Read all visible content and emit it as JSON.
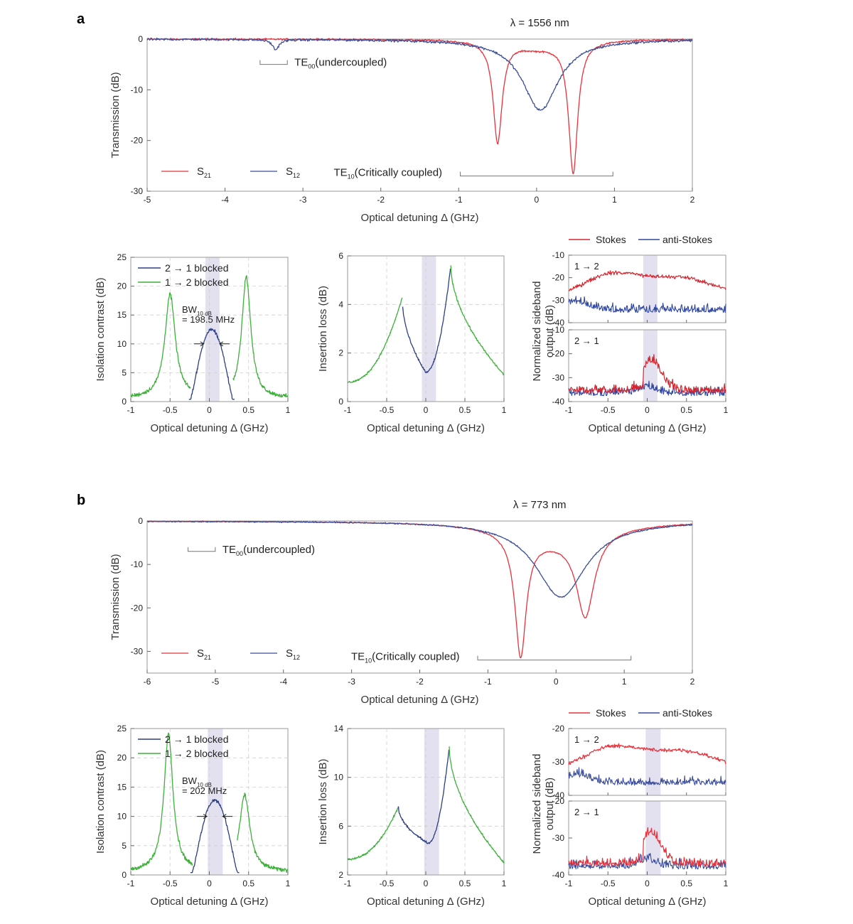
{
  "figure": {
    "panel_a_label": "a",
    "panel_b_label": "b"
  },
  "chart_data": [
    {
      "id": "a_trans",
      "type": "line",
      "title": "λ = 1556 nm",
      "xlabel": "Optical detuning Δ (GHz)",
      "ylabel": "Transmission (dB)",
      "xlim": [
        -5,
        2
      ],
      "ylim": [
        -30,
        0
      ],
      "xticks": [
        "-5",
        "-4",
        "-3",
        "-2",
        "-1",
        "0",
        "1",
        "2"
      ],
      "yticks": [
        "0",
        "-10",
        "-20",
        "-30"
      ],
      "series": [
        {
          "name": "S21",
          "sub": "21",
          "color": "#e8323c",
          "dips": [
            {
              "x0": -0.5,
              "gamma": 0.07,
              "depth": 20
            },
            {
              "x0": 0.47,
              "gamma": 0.07,
              "depth": 26
            },
            {
              "x0": 0.0,
              "gamma": 0.35,
              "depth": 1.5
            }
          ],
          "noise": 0.15
        },
        {
          "name": "S12",
          "sub": "12",
          "color": "#3a4d9a",
          "dips": [
            {
              "x0": 0.05,
              "gamma": 0.28,
              "depth": 14
            },
            {
              "x0": -3.35,
              "gamma": 0.05,
              "depth": 2
            }
          ],
          "noise": 0.2
        }
      ],
      "legend": [
        {
          "base": "S",
          "sub": "21"
        },
        {
          "base": "S",
          "sub": "12"
        }
      ],
      "annotations": {
        "te00": {
          "base": "TE",
          "sub": "00",
          "rest": "(undercoupled)",
          "range": [
            -3.55,
            -3.2
          ],
          "y": -5
        },
        "te10": {
          "base": "TE",
          "sub": "10",
          "rest": "(Critically coupled)",
          "range": [
            -0.98,
            0.98
          ],
          "y": -27
        }
      }
    },
    {
      "id": "a_iso",
      "type": "line",
      "xlabel": "Optical detuning Δ (GHz)",
      "ylabel": "Isolation contrast (dB)",
      "xlim": [
        -1,
        1
      ],
      "ylim": [
        0,
        25
      ],
      "xticks": [
        "-1",
        "-0.5",
        "0",
        "0.5",
        "1"
      ],
      "yticks": [
        "0",
        "5",
        "10",
        "15",
        "20",
        "25"
      ],
      "band": [
        -0.05,
        0.13
      ],
      "series": [
        {
          "name": "2 → 1 blocked",
          "color": "#2d3f84"
        },
        {
          "name": "1 → 2 blocked",
          "color": "#3db13a"
        }
      ],
      "green_peaks": [
        {
          "x0": -0.5,
          "gamma": 0.08,
          "amp": 18
        },
        {
          "x0": 0.47,
          "gamma": 0.07,
          "amp": 21
        }
      ],
      "blue_peak": {
        "x0": 0.03,
        "width": 0.28,
        "amp": 12.5
      },
      "bw_label": {
        "base": "BW",
        "sub": "10 dB",
        "value": "= 198.5 MHz"
      }
    },
    {
      "id": "a_ins",
      "type": "line",
      "xlabel": "Optical detuning Δ (GHz)",
      "ylabel": "Insertion loss (dB)",
      "xlim": [
        -1,
        1
      ],
      "ylim": [
        0,
        6
      ],
      "xticks": [
        "-1",
        "-0.5",
        "0",
        "0.5",
        "1"
      ],
      "yticks": [
        "0",
        "2",
        "4",
        "6"
      ],
      "band": [
        -0.05,
        0.13
      ],
      "peaks": [
        {
          "x": -0.3,
          "y": 4.3
        },
        {
          "x": 0.32,
          "y": 5.6
        }
      ],
      "min": {
        "x": 0.0,
        "y": 1.2
      },
      "edges": [
        0.8,
        1.1
      ]
    },
    {
      "id": "a_side",
      "type": "line",
      "xlabel": "Optical detuning Δ (GHz)",
      "ylabel": "Normalized sideband output (dB)",
      "xlim": [
        -1,
        1
      ],
      "ylim": [
        -40,
        -10
      ],
      "xticks": [
        "-1",
        "-0.5",
        "0",
        "0.5",
        "1"
      ],
      "yticks": [
        "-10",
        "-20",
        "-30",
        "-40"
      ],
      "band": [
        -0.05,
        0.13
      ],
      "legend": [
        {
          "name": "Stokes",
          "color": "#d7262e"
        },
        {
          "name": "anti-Stokes",
          "color": "#2e46a0"
        }
      ],
      "sub_labels": [
        "1 → 2",
        "2 → 1"
      ]
    },
    {
      "id": "b_trans",
      "type": "line",
      "title": "λ = 773 nm",
      "xlabel": "Optical detuning Δ (GHz)",
      "ylabel": "Transmission (dB)",
      "xlim": [
        -6,
        2
      ],
      "ylim": [
        -35,
        0
      ],
      "xticks": [
        "-6",
        "-5",
        "-4",
        "-3",
        "-2",
        "-1",
        "0",
        "1",
        "2"
      ],
      "yticks": [
        "0",
        "-10",
        "-20",
        "-30"
      ],
      "series": [
        {
          "name": "S21",
          "sub": "21",
          "color": "#e8323c",
          "dips": [
            {
              "x0": -0.52,
              "gamma": 0.1,
              "depth": 28
            },
            {
              "x0": 0.43,
              "gamma": 0.16,
              "depth": 19
            },
            {
              "x0": -0.05,
              "gamma": 0.8,
              "depth": 4
            }
          ],
          "noise": 0.1
        },
        {
          "name": "S12",
          "sub": "12",
          "color": "#3a4d9a",
          "dips": [
            {
              "x0": 0.07,
              "gamma": 0.45,
              "depth": 17.5
            }
          ],
          "noise": 0.12
        }
      ],
      "legend": [
        {
          "base": "S",
          "sub": "21"
        },
        {
          "base": "S",
          "sub": "12"
        }
      ],
      "annotations": {
        "te00": {
          "base": "TE",
          "sub": "00",
          "rest": "(undercoupled)",
          "range": [
            -5.4,
            -5.0
          ],
          "y": -7
        },
        "te10": {
          "base": "TE",
          "sub": "10",
          "rest": "(Critically coupled)",
          "range": [
            -1.15,
            1.1
          ],
          "y": -32
        }
      }
    },
    {
      "id": "b_iso",
      "type": "line",
      "xlabel": "Optical detuning Δ (GHz)",
      "ylabel": "Isolation contrast (dB)",
      "xlim": [
        -1,
        1
      ],
      "ylim": [
        0,
        25
      ],
      "xticks": [
        "-1",
        "-0.5",
        "0",
        "0.5",
        "1"
      ],
      "yticks": [
        "0",
        "5",
        "10",
        "15",
        "20",
        "25"
      ],
      "band": [
        -0.02,
        0.17
      ],
      "series": [
        {
          "name": "2 → 1 blocked",
          "color": "#2d3f84"
        },
        {
          "name": "1 → 2 blocked",
          "color": "#3db13a"
        }
      ],
      "green_peaks": [
        {
          "x0": -0.52,
          "gamma": 0.07,
          "amp": 23.5
        },
        {
          "x0": 0.45,
          "gamma": 0.08,
          "amp": 13
        }
      ],
      "blue_peak": {
        "x0": 0.07,
        "width": 0.3,
        "amp": 12.8
      },
      "bw_label": {
        "base": "BW",
        "sub": "10 dB",
        "value": "= 202 MHz"
      }
    },
    {
      "id": "b_ins",
      "type": "line",
      "xlabel": "Optical detuning Δ (GHz)",
      "ylabel": "Insertion loss (dB)",
      "xlim": [
        -1,
        1
      ],
      "ylim": [
        2,
        14
      ],
      "xticks": [
        "-1",
        "-0.5",
        "0",
        "0.5",
        "1"
      ],
      "yticks": [
        "2",
        "6",
        "10",
        "14"
      ],
      "band": [
        -0.02,
        0.17
      ],
      "peaks": [
        {
          "x": -0.35,
          "y": 7.6
        },
        {
          "x": 0.3,
          "y": 12.5
        }
      ],
      "min": {
        "x": 0.03,
        "y": 4.6
      },
      "edges": [
        3.3,
        3.0
      ]
    },
    {
      "id": "b_side",
      "type": "line",
      "xlabel": "Optical detuning Δ (GHz)",
      "ylabel": "Normalized sideband output (dB)",
      "xlim": [
        -1,
        1
      ],
      "ylim": [
        -40,
        -20
      ],
      "xticks": [
        "-1",
        "-0.5",
        "0",
        "0.5",
        "1"
      ],
      "yticks": [
        "-20",
        "-30",
        "-40"
      ],
      "band": [
        -0.02,
        0.17
      ],
      "legend": [
        {
          "name": "Stokes",
          "color": "#e8323c"
        },
        {
          "name": "anti-Stokes",
          "color": "#3a4d9a"
        }
      ],
      "sub_labels": [
        "1 → 2",
        "2 → 1"
      ]
    }
  ]
}
